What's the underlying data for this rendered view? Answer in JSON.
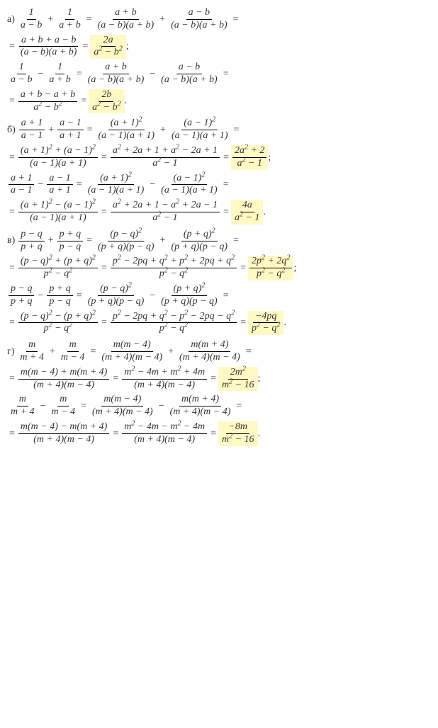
{
  "colors": {
    "text": "#333333",
    "highlight": "#fff9c4",
    "background": "#ffffff",
    "fraction_bar": "#000000"
  },
  "typography": {
    "font_family": "Georgia, Times New Roman, serif",
    "base_size": 14,
    "superscript_size": 10
  },
  "problems": {
    "a": {
      "label": "а)",
      "line1": {
        "f1_num": "1",
        "f1_den": "a − b",
        "op1": "+",
        "f2_num": "1",
        "f2_den": "a + b",
        "eq1": "=",
        "f3_num": "a + b",
        "f3_den": "(a − b)(a + b)",
        "op2": "+",
        "f4_num": "a − b",
        "f4_den": "(a − b)(a + b)",
        "eq2": "="
      },
      "line2": {
        "eq1": "=",
        "f1_num": "a + b + a − b",
        "f1_den": "(a − b)(a + b)",
        "eq2": "=",
        "f2_num": "2a",
        "f2_den": "a² − b²",
        "end": ";"
      },
      "line3": {
        "f1_num": "1",
        "f1_den": "a − b",
        "op1": "−",
        "f2_num": "1",
        "f2_den": "a + b",
        "eq1": "=",
        "f3_num": "a + b",
        "f3_den": "(a − b)(a + b)",
        "op2": "−",
        "f4_num": "a − b",
        "f4_den": "(a − b)(a + b)",
        "eq2": "="
      },
      "line4": {
        "eq1": "=",
        "f1_num": "a + b − a + b",
        "f1_den": "a² − b²",
        "eq2": "=",
        "f2_num": "2b",
        "f2_den": "a² − b²",
        "end": "."
      }
    },
    "b": {
      "label": "б)",
      "line1": {
        "f1_num": "a + 1",
        "f1_den": "a − 1",
        "op1": "+",
        "f2_num": "a − 1",
        "f2_den": "a + 1",
        "eq1": "=",
        "f3_num": "(a + 1)²",
        "f3_den": "(a − 1)(a + 1)",
        "op2": "+",
        "f4_num": "(a − 1)²",
        "f4_den": "(a − 1)(a + 1)",
        "eq2": "="
      },
      "line2": {
        "eq1": "=",
        "f1_num": "(a + 1)² + (a − 1)²",
        "f1_den": "(a − 1)(a + 1)",
        "eq2": "=",
        "f2_num": "a² + 2a + 1 + a² − 2a + 1",
        "f2_den": "a² − 1",
        "eq3": "=",
        "f3_num": "2a² + 2",
        "f3_den": "a² − 1",
        "end": ";"
      },
      "line3": {
        "f1_num": "a + 1",
        "f1_den": "a − 1",
        "op1": "−",
        "f2_num": "a − 1",
        "f2_den": "a + 1",
        "eq1": "=",
        "f3_num": "(a + 1)²",
        "f3_den": "(a − 1)(a + 1)",
        "op2": "−",
        "f4_num": "(a − 1)²",
        "f4_den": "(a − 1)(a + 1)",
        "eq2": "="
      },
      "line4": {
        "eq1": "=",
        "f1_num": "(a + 1)² − (a − 1)²",
        "f1_den": "(a − 1)(a + 1)",
        "eq2": "=",
        "f2_num": "a² + 2a + 1 − a² + 2a − 1",
        "f2_den": "a² − 1",
        "eq3": "=",
        "f3_num": "4a",
        "f3_den": "a² − 1",
        "end": "."
      }
    },
    "c": {
      "label": "в)",
      "line1": {
        "f1_num": "p − q",
        "f1_den": "p + q",
        "op1": "+",
        "f2_num": "p + q",
        "f2_den": "p − q",
        "eq1": "=",
        "f3_num": "(p − q)²",
        "f3_den": "(p + q)(p − q)",
        "op2": "+",
        "f4_num": "(p + q)²",
        "f4_den": "(p + q)(p − q)",
        "eq2": "="
      },
      "line2": {
        "eq1": "=",
        "f1_num": "(p − q)² + (p + q)²",
        "f1_den": "p² − q²",
        "eq2": "=",
        "f2_num": "p² − 2pq + q² + p² + 2pq + q²",
        "f2_den": "p² − q²",
        "eq3": "=",
        "f3_num": "2p² + 2q²",
        "f3_den": "p² − q²",
        "end": ";"
      },
      "line3": {
        "f1_num": "p − q",
        "f1_den": "p + q",
        "op1": "−",
        "f2_num": "p + q",
        "f2_den": "p − q",
        "eq1": "=",
        "f3_num": "(p − q)²",
        "f3_den": "(p + q)(p − q)",
        "op2": "−",
        "f4_num": "(p + q)²",
        "f4_den": "(p + q)(p − q)",
        "eq2": "="
      },
      "line4": {
        "eq1": "=",
        "f1_num": "(p − q)² − (p + q)²",
        "f1_den": "p² − q²",
        "eq2": "=",
        "f2_num": "p² − 2pq + q² − p² − 2pq − q²",
        "f2_den": "p² − q²",
        "eq3": "=",
        "f3_num": "−4pq",
        "f3_den": "p² − q²",
        "end": "."
      }
    },
    "d": {
      "label": "г)",
      "line1": {
        "f1_num": "m",
        "f1_den": "m + 4",
        "op1": "+",
        "f2_num": "m",
        "f2_den": "m − 4",
        "eq1": "=",
        "f3_num": "m(m − 4)",
        "f3_den": "(m + 4)(m − 4)",
        "op2": "+",
        "f4_num": "m(m + 4)",
        "f4_den": "(m + 4)(m − 4)",
        "eq2": "="
      },
      "line2": {
        "eq1": "=",
        "f1_num": "m(m − 4) + m(m + 4)",
        "f1_den": "(m + 4)(m − 4)",
        "eq2": "=",
        "f2_num": "m² − 4m + m² + 4m",
        "f2_den": "(m + 4)(m − 4)",
        "eq3": "=",
        "f3_num": "2m²",
        "f3_den": "m² − 16",
        "end": ";"
      },
      "line3": {
        "f1_num": "m",
        "f1_den": "m + 4",
        "op1": "−",
        "f2_num": "m",
        "f2_den": "m − 4",
        "eq1": "=",
        "f3_num": "m(m − 4)",
        "f3_den": "(m + 4)(m − 4)",
        "op2": "−",
        "f4_num": "m(m + 4)",
        "f4_den": "(m + 4)(m − 4)",
        "eq2": "="
      },
      "line4": {
        "eq1": "=",
        "f1_num": "m(m − 4) − m(m + 4)",
        "f1_den": "(m + 4)(m − 4)",
        "eq2": "=",
        "f2_num": "m² − 4m − m² − 4m",
        "f2_den": "(m + 4)(m − 4)",
        "eq3": "=",
        "f3_num": "−8m",
        "f3_den": "m² − 16",
        "end": "."
      }
    }
  }
}
